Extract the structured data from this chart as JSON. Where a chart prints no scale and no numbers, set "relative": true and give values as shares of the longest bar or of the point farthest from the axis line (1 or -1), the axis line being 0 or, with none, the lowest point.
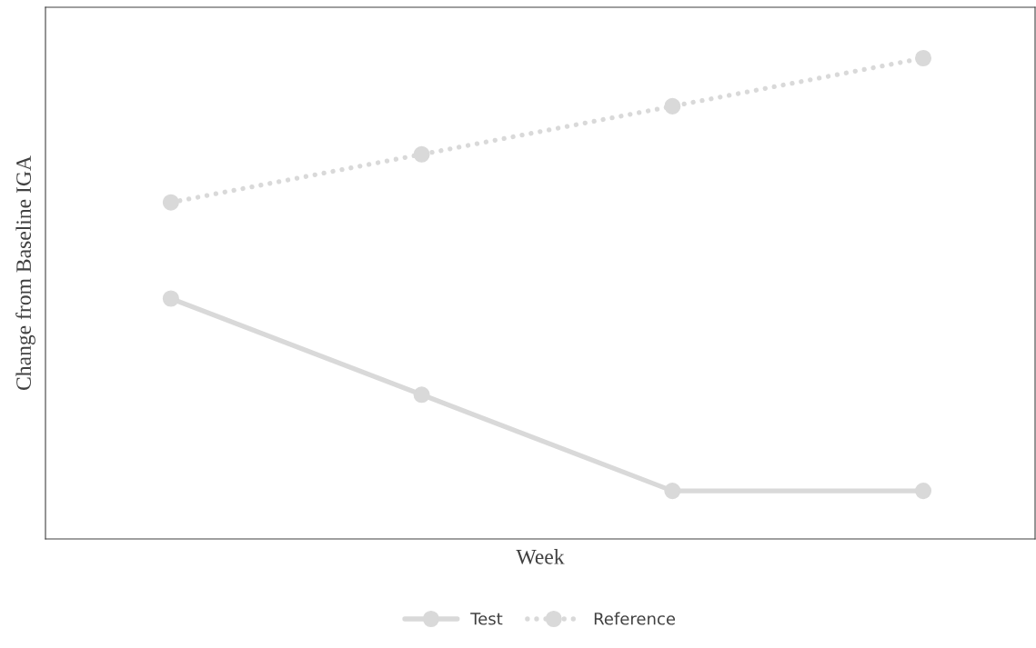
{
  "chart_data": {
    "type": "line",
    "relative": true,
    "xlabel": "Week",
    "ylabel": "Change from Baseline IGA",
    "categories": [
      null,
      null,
      null,
      null
    ],
    "series": [
      {
        "name": "Test",
        "color": "#d9d9d9",
        "values": [
          0.5,
          0.3,
          0.1,
          0.1
        ],
        "line_style": "solid"
      },
      {
        "name": "Reference",
        "color": "#d9d9d9",
        "values": [
          0.7,
          0.8,
          0.9,
          1.0
        ],
        "line_style": "dotted"
      }
    ],
    "marker": "circle",
    "legend": "bottom",
    "tick_labels": false
  }
}
